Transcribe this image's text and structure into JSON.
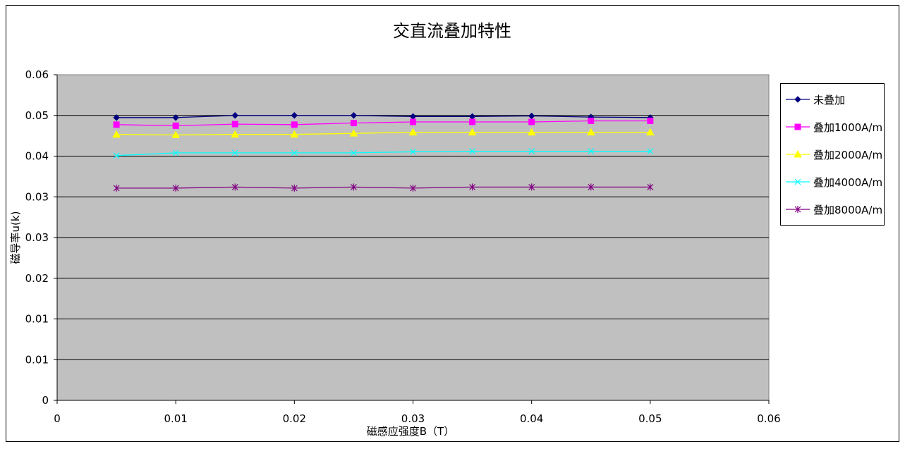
{
  "chart_data": {
    "type": "line",
    "title": "交直流叠加特性",
    "xlabel": "磁感应强度B（T）",
    "ylabel": "磁导率u(k)",
    "xlim": [
      0,
      0.06
    ],
    "ylim": [
      0,
      0.06
    ],
    "x_tick_labels": [
      "0",
      "0.01",
      "0.02",
      "0.03",
      "0.04",
      "0.05",
      "0.06"
    ],
    "y_tick_labels": [
      "0",
      "0.01",
      "0.01",
      "0.02",
      "0.03",
      "0.03",
      "0.04",
      "0.05",
      "0.06"
    ],
    "grid": "horizontal",
    "legend_position": "right",
    "plot_background": "#c0c0c0",
    "x": [
      0.005,
      0.01,
      0.015,
      0.02,
      0.025,
      0.03,
      0.035,
      0.04,
      0.045,
      0.05
    ],
    "series": [
      {
        "name": "未叠加",
        "color": "#000080",
        "marker": "diamond",
        "values": [
          0.0521,
          0.0521,
          0.0525,
          0.0525,
          0.0525,
          0.0523,
          0.0523,
          0.0524,
          0.0522,
          0.0521
        ]
      },
      {
        "name": "叠加1000A/m",
        "color": "#ff00ff",
        "marker": "square",
        "values": [
          0.0508,
          0.0506,
          0.0509,
          0.0508,
          0.0511,
          0.0513,
          0.0513,
          0.0513,
          0.0515,
          0.0515
        ]
      },
      {
        "name": "叠加2000A/m",
        "color": "#ffff00",
        "marker": "triangle",
        "values": [
          0.049,
          0.0489,
          0.049,
          0.049,
          0.0492,
          0.0494,
          0.0494,
          0.0494,
          0.0494,
          0.0494
        ]
      },
      {
        "name": "叠加4000A/m",
        "color": "#00ffff",
        "marker": "x",
        "values": [
          0.0451,
          0.0456,
          0.0456,
          0.0456,
          0.0456,
          0.0458,
          0.0459,
          0.0459,
          0.0459,
          0.0459
        ]
      },
      {
        "name": "叠加8000A/m",
        "color": "#800080",
        "marker": "star",
        "values": [
          0.0391,
          0.0391,
          0.0393,
          0.0391,
          0.0393,
          0.0391,
          0.0393,
          0.0393,
          0.0393,
          0.0393
        ]
      }
    ]
  }
}
